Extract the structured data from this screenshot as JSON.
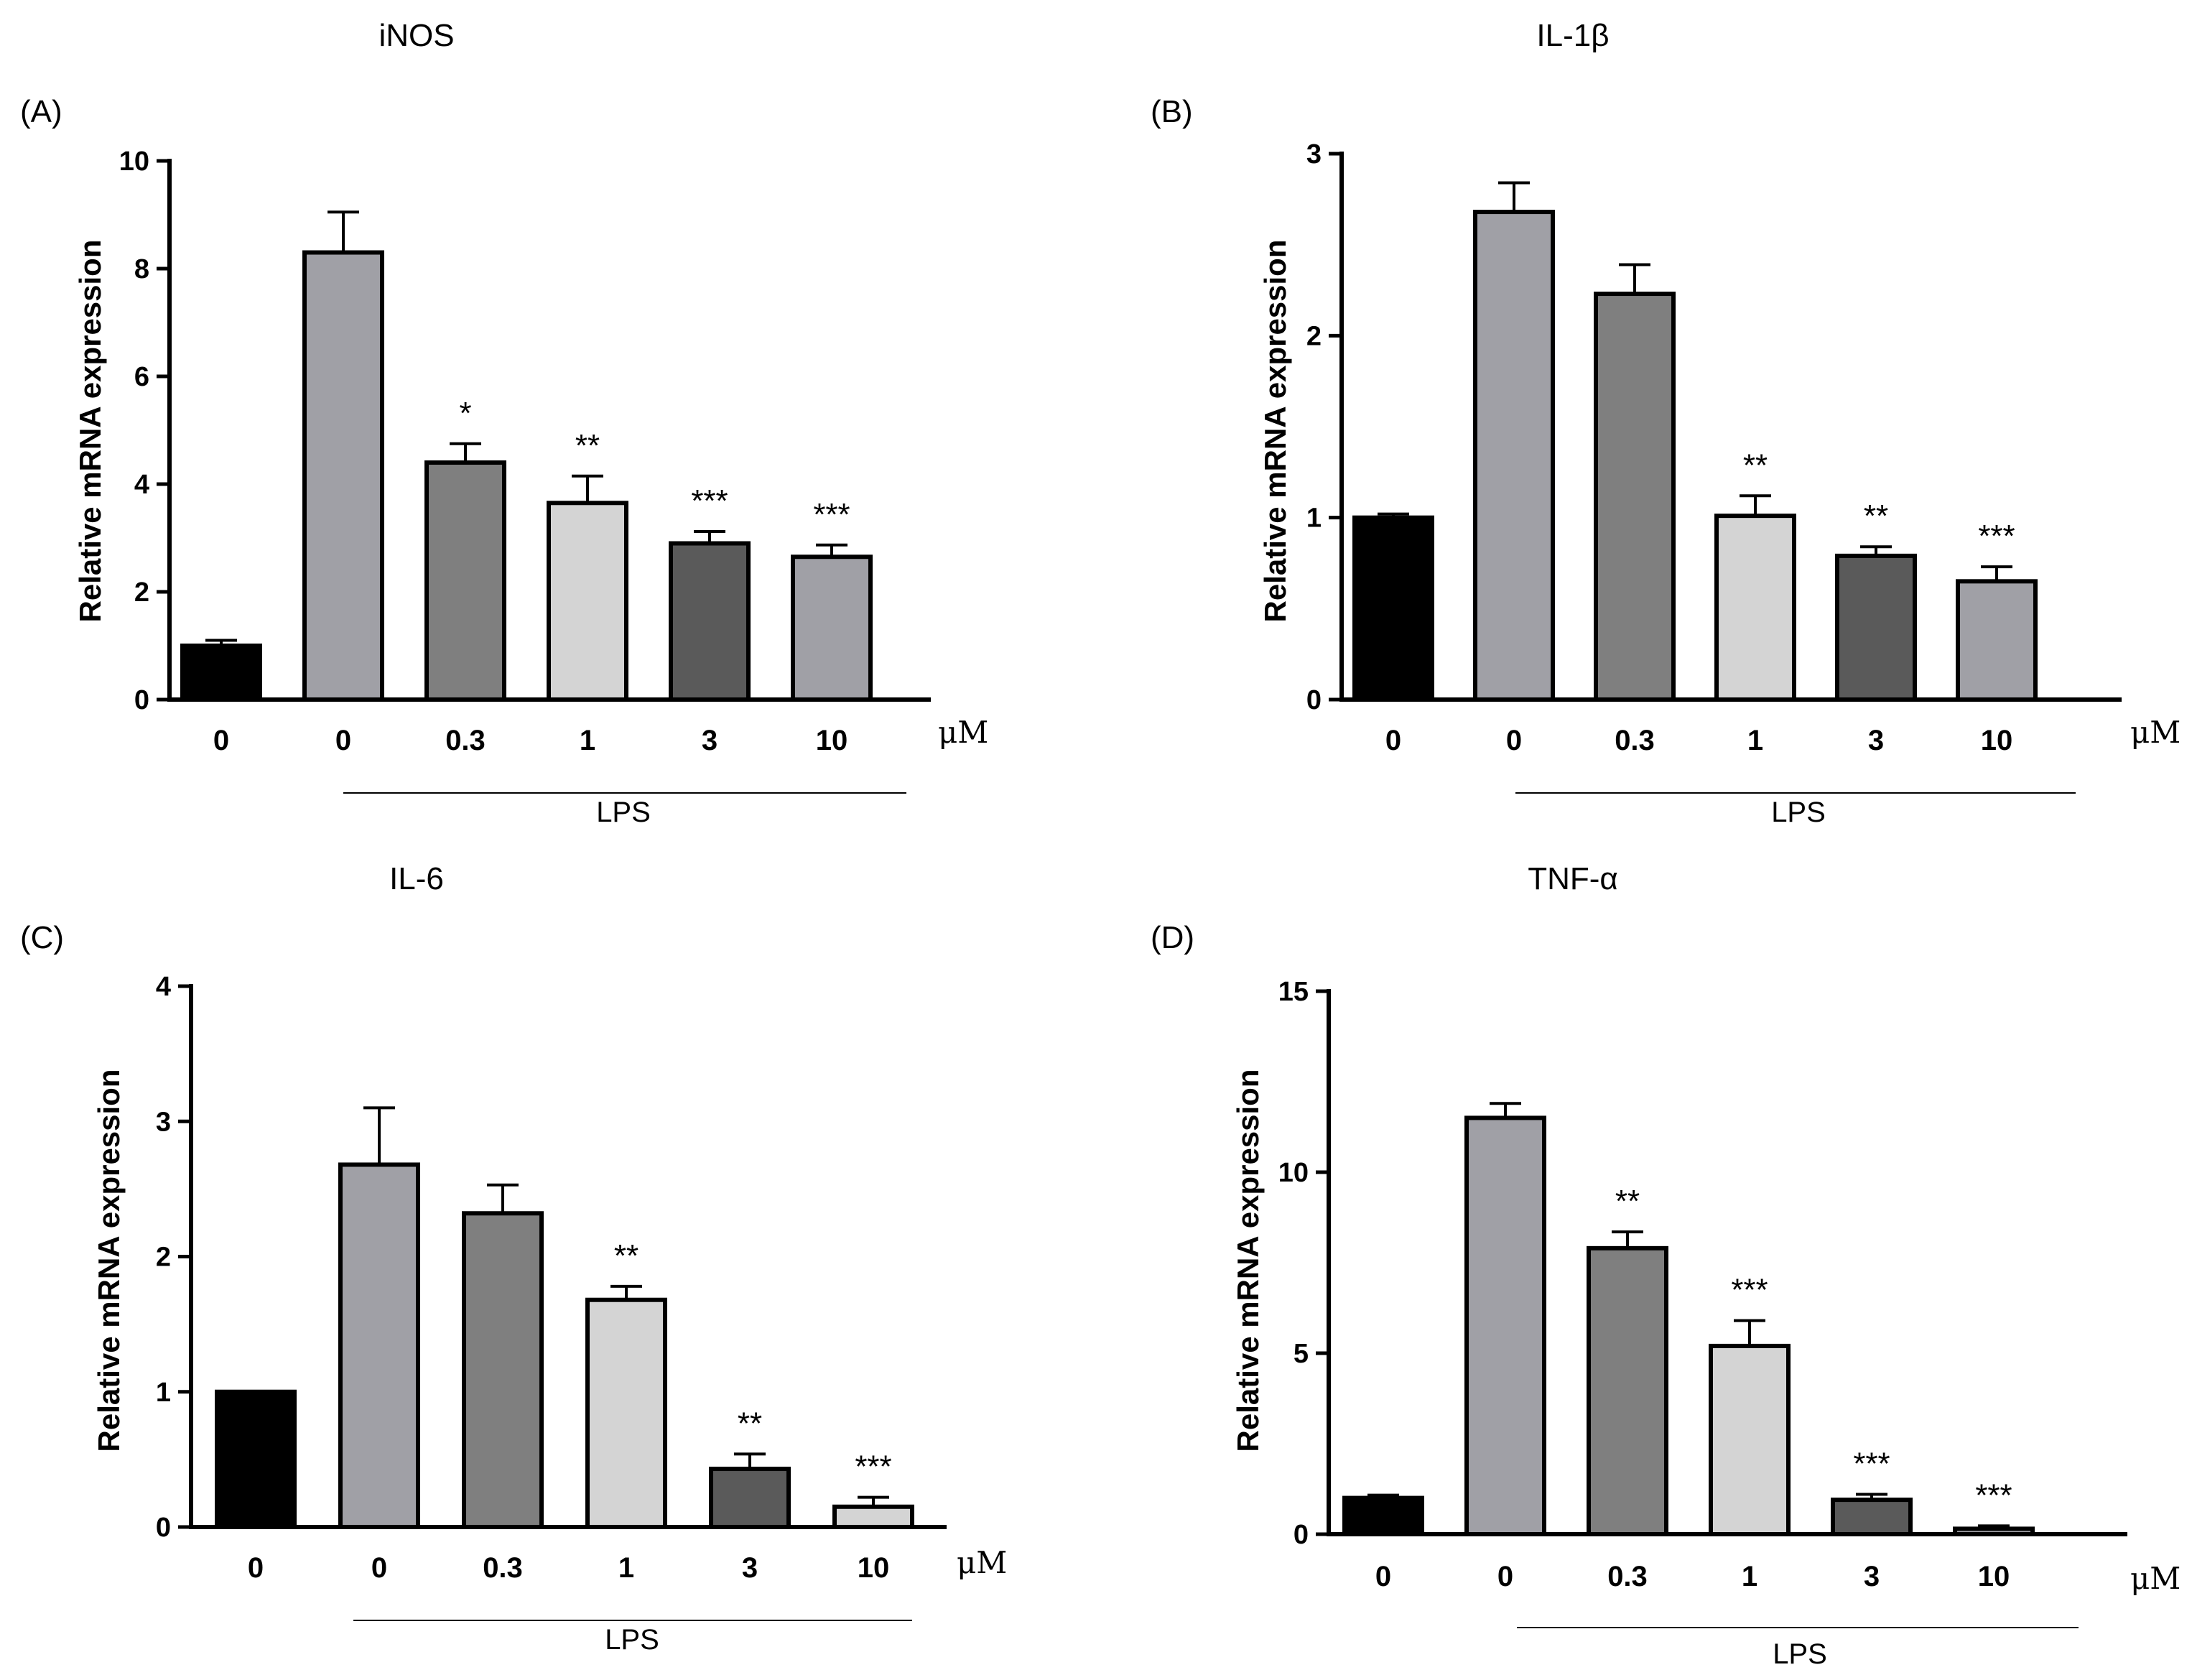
{
  "chart_data": [
    {
      "panel_label": "(A)",
      "type": "bar",
      "title": "iNOS",
      "ylabel": "Relative mRNA expression",
      "ylim": [
        0,
        10
      ],
      "yticks": [
        "0",
        "2",
        "4",
        "6",
        "8",
        "10"
      ],
      "categories": [
        "0",
        "0",
        "0.3",
        "1",
        "3",
        "10"
      ],
      "unit": "μM",
      "group_label": "LPS",
      "values": [
        1.0,
        8.3,
        4.4,
        3.65,
        2.9,
        2.65
      ],
      "errors": [
        0.1,
        0.75,
        0.35,
        0.5,
        0.22,
        0.22
      ],
      "significance": [
        "",
        "",
        "*",
        "**",
        "***",
        "***"
      ],
      "colors": [
        "#000000",
        "#a0a0a6",
        "#7f7f7f",
        "#d4d4d4",
        "#5a5a5a",
        "#a0a0a6"
      ]
    },
    {
      "panel_label": "(B)",
      "type": "bar",
      "title": "IL-1β",
      "ylabel": "Relative mRNA expression",
      "ylim": [
        0,
        3
      ],
      "yticks": [
        "0",
        "1",
        "2",
        "3"
      ],
      "categories": [
        "0",
        "0",
        "0.3",
        "1",
        "3",
        "10"
      ],
      "unit": "μM",
      "group_label": "LPS",
      "values": [
        1.0,
        2.68,
        2.23,
        1.01,
        0.79,
        0.65
      ],
      "errors": [
        0.02,
        0.16,
        0.16,
        0.11,
        0.05,
        0.08
      ],
      "significance": [
        "",
        "",
        "",
        "**",
        "**",
        "***"
      ],
      "colors": [
        "#000000",
        "#a0a0a6",
        "#7f7f7f",
        "#d4d4d4",
        "#5a5a5a",
        "#a0a0a6"
      ]
    },
    {
      "panel_label": "(C)",
      "type": "bar",
      "title": "IL-6",
      "ylabel": "Relative mRNA expression",
      "ylim": [
        0,
        4
      ],
      "yticks": [
        "0",
        "1",
        "2",
        "3",
        "4"
      ],
      "categories": [
        "0",
        "0",
        "0.3",
        "1",
        "3",
        "10"
      ],
      "unit": "μM",
      "group_label": "LPS",
      "values": [
        1.0,
        2.68,
        2.32,
        1.68,
        0.43,
        0.15
      ],
      "errors": [
        0.0,
        0.42,
        0.21,
        0.1,
        0.11,
        0.07
      ],
      "significance": [
        "",
        "",
        "",
        "**",
        "**",
        "***"
      ],
      "colors": [
        "#000000",
        "#a0a0a6",
        "#7f7f7f",
        "#d4d4d4",
        "#5a5a5a",
        "#d4d4d4"
      ]
    },
    {
      "panel_label": "(D)",
      "type": "bar",
      "title": "TNF-α",
      "ylabel": "Relative mRNA expression",
      "ylim": [
        0,
        15
      ],
      "yticks": [
        "0",
        "5",
        "10",
        "15"
      ],
      "categories": [
        "0",
        "0",
        "0.3",
        "1",
        "3",
        "10"
      ],
      "unit": "μM",
      "group_label": "LPS",
      "values": [
        1.0,
        11.5,
        7.9,
        5.2,
        0.95,
        0.15
      ],
      "errors": [
        0.08,
        0.4,
        0.45,
        0.7,
        0.15,
        0.08
      ],
      "significance": [
        "",
        "",
        "**",
        "***",
        "***",
        "***"
      ],
      "colors": [
        "#000000",
        "#a0a0a6",
        "#7f7f7f",
        "#d4d4d4",
        "#5a5a5a",
        "#a0a0a6"
      ]
    }
  ]
}
